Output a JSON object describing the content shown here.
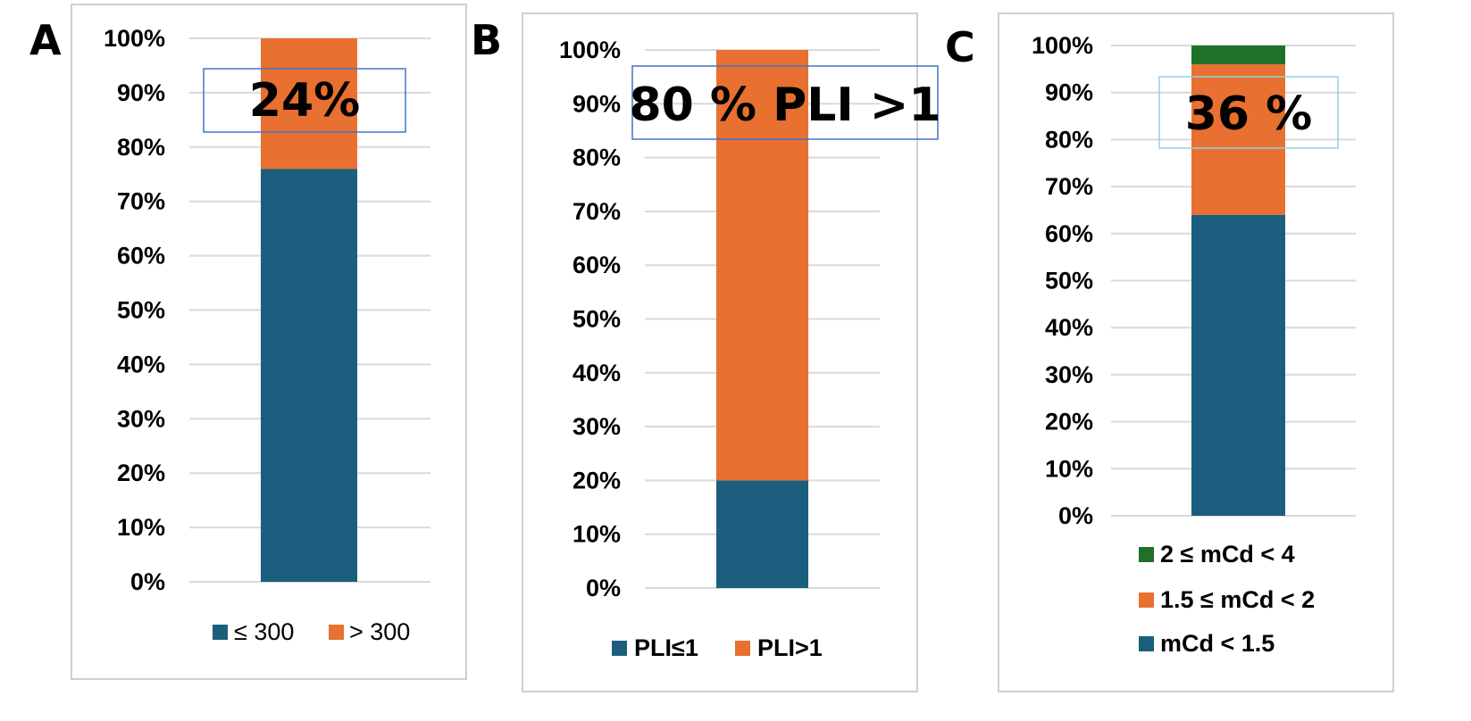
{
  "colors": {
    "blue": "#1b5e7e",
    "orange": "#e87030",
    "green": "#1f7128",
    "grid": "#d9d9d9",
    "frame": "#cfcfcf",
    "box_blue": "#4472c4",
    "box_cyan": "#8fd3e3"
  },
  "panels": [
    {
      "letter": "A",
      "callout": "24%"
    },
    {
      "letter": "B",
      "callout": "80 % PLI >1"
    },
    {
      "letter": "C",
      "callout": "36 %"
    }
  ],
  "chart_data": [
    {
      "type": "bar",
      "stacked": true,
      "ylim": [
        0,
        100
      ],
      "yticks": [
        "0%",
        "10%",
        "20%",
        "30%",
        "40%",
        "50%",
        "60%",
        "70%",
        "80%",
        "90%",
        "100%"
      ],
      "series": [
        {
          "name": "≤ 300",
          "values": [
            76
          ],
          "color": "#1b5e7e"
        },
        {
          "name": "> 300",
          "values": [
            24
          ],
          "color": "#e87030"
        }
      ],
      "legend": "bottom",
      "grid": true
    },
    {
      "type": "bar",
      "stacked": true,
      "ylim": [
        0,
        100
      ],
      "yticks": [
        "0%",
        "10%",
        "20%",
        "30%",
        "40%",
        "50%",
        "60%",
        "70%",
        "80%",
        "90%",
        "100%"
      ],
      "series": [
        {
          "name": "PLI≤1",
          "values": [
            20
          ],
          "color": "#1b5e7e"
        },
        {
          "name": "PLI>1",
          "values": [
            80
          ],
          "color": "#e87030"
        }
      ],
      "legend": "bottom",
      "grid": true
    },
    {
      "type": "bar",
      "stacked": true,
      "ylim": [
        0,
        100
      ],
      "yticks": [
        "0%",
        "10%",
        "20%",
        "30%",
        "40%",
        "50%",
        "60%",
        "70%",
        "80%",
        "90%",
        "100%"
      ],
      "series": [
        {
          "name": "mCd < 1.5",
          "values": [
            64
          ],
          "color": "#1b5e7e"
        },
        {
          "name": "1.5 ≤ mCd < 2",
          "values": [
            32
          ],
          "color": "#e87030"
        },
        {
          "name": "2 ≤ mCd < 4",
          "values": [
            4
          ],
          "color": "#1f7128"
        }
      ],
      "legend": "bottom-stacked",
      "grid": true
    }
  ]
}
